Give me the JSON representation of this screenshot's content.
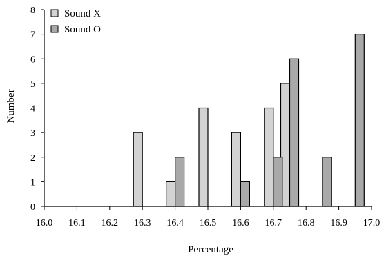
{
  "chart_data": {
    "type": "bar",
    "xlabel": "Percentage",
    "ylabel": "Number",
    "xlim": [
      16.0,
      17.0
    ],
    "ylim": [
      0,
      8
    ],
    "x_ticks": [
      "16.0",
      "16.1",
      "16.2",
      "16.3",
      "16.4",
      "16.5",
      "16.6",
      "16.7",
      "16.8",
      "16.9",
      "17.0"
    ],
    "y_ticks": [
      "0",
      "1",
      "2",
      "3",
      "4",
      "5",
      "6",
      "7",
      "8"
    ],
    "grid": false,
    "legend_position": "top-left",
    "series": [
      {
        "name": "Sound X",
        "color": "#d3d3d3",
        "points": [
          {
            "x": 16.3,
            "y": 3
          },
          {
            "x": 16.4,
            "y": 1
          },
          {
            "x": 16.5,
            "y": 4
          },
          {
            "x": 16.6,
            "y": 3
          },
          {
            "x": 16.7,
            "y": 4
          },
          {
            "x": 16.75,
            "y": 5
          }
        ]
      },
      {
        "name": "Sound O",
        "color": "#a9a9a9",
        "points": [
          {
            "x": 16.4,
            "y": 2
          },
          {
            "x": 16.6,
            "y": 1
          },
          {
            "x": 16.7,
            "y": 2
          },
          {
            "x": 16.75,
            "y": 6
          },
          {
            "x": 16.85,
            "y": 2
          },
          {
            "x": 16.95,
            "y": 7
          }
        ]
      }
    ]
  }
}
